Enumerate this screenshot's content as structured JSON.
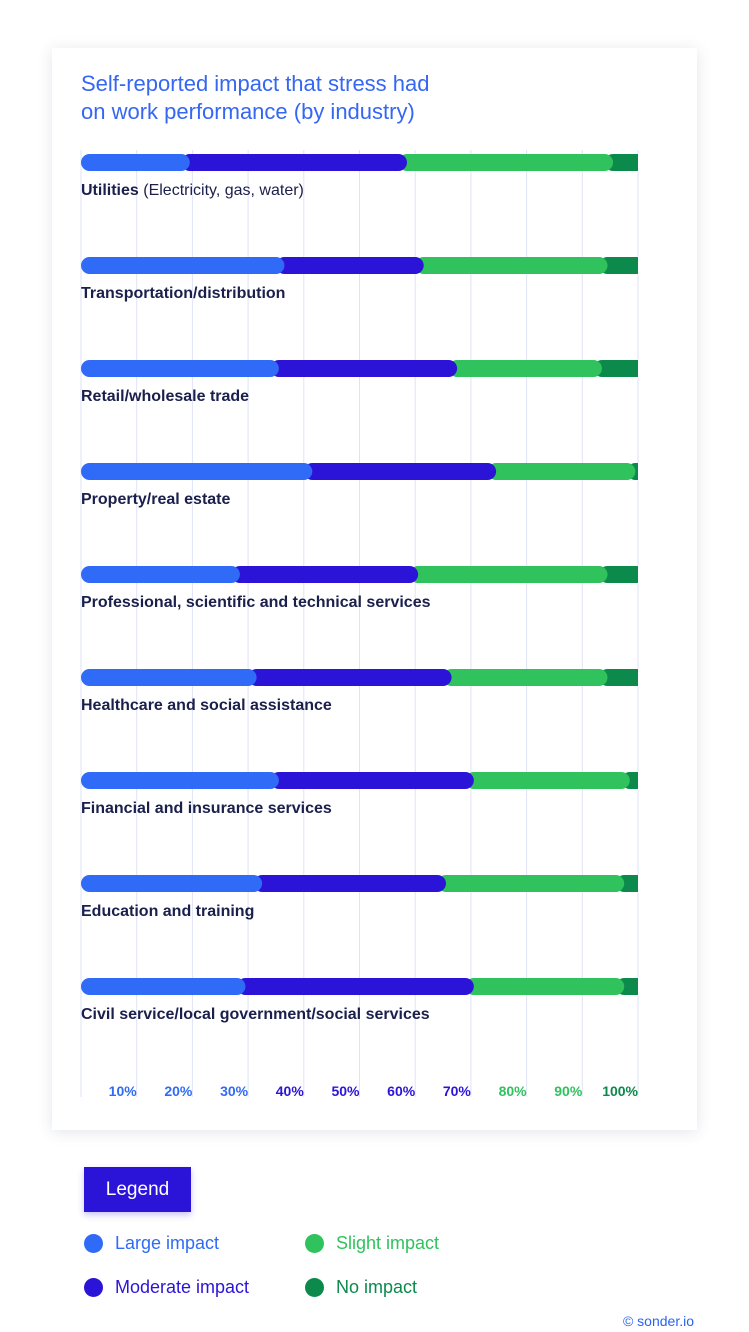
{
  "chart_data": {
    "type": "bar",
    "stacked": true,
    "orientation": "horizontal",
    "title": "Self-reported impact that stress had on work performance (by industry)",
    "title_lines": [
      "Self-reported impact that stress had",
      "on work performance (by industry)"
    ],
    "categories": [
      {
        "bold": "Utilities",
        "rest": " (Electricity, gas, water)"
      },
      {
        "bold": "Transportation/distribution",
        "rest": ""
      },
      {
        "bold": "Retail/wholesale trade",
        "rest": ""
      },
      {
        "bold": "Property/real estate",
        "rest": ""
      },
      {
        "bold": "Professional, scientific and technical services",
        "rest": ""
      },
      {
        "bold": "Healthcare and social assistance",
        "rest": ""
      },
      {
        "bold": "Financial and insurance services",
        "rest": ""
      },
      {
        "bold": "Education and training",
        "rest": ""
      },
      {
        "bold": "Civil service/local government/social services",
        "rest": ""
      }
    ],
    "series": [
      {
        "name": "Large impact",
        "color": "#2f6bf6",
        "values": [
          18,
          35,
          34,
          40,
          27,
          30,
          34,
          31,
          28
        ]
      },
      {
        "name": "Moderate impact",
        "color": "#2b14d8",
        "values": [
          39,
          25,
          32,
          33,
          32,
          35,
          35,
          33,
          41
        ]
      },
      {
        "name": "Slight impact",
        "color": "#2fc25d",
        "values": [
          37,
          33,
          26,
          25,
          34,
          28,
          28,
          32,
          27
        ]
      },
      {
        "name": "No impact",
        "color": "#0b8a4c",
        "values": [
          6,
          7,
          8,
          2,
          7,
          7,
          3,
          4,
          4
        ]
      }
    ],
    "xlim": [
      0,
      100
    ],
    "ticks": [
      {
        "label": "10%",
        "color": "#2f6bf6"
      },
      {
        "label": "20%",
        "color": "#2f6bf6"
      },
      {
        "label": "30%",
        "color": "#2f6bf6"
      },
      {
        "label": "40%",
        "color": "#2b14d8"
      },
      {
        "label": "50%",
        "color": "#2b14d8"
      },
      {
        "label": "60%",
        "color": "#2b14d8"
      },
      {
        "label": "70%",
        "color": "#2b14d8"
      },
      {
        "label": "80%",
        "color": "#2fc25d"
      },
      {
        "label": "90%",
        "color": "#2fc25d"
      },
      {
        "label": "100%",
        "color": "#0b8a4c"
      }
    ],
    "grid": true
  },
  "legend": {
    "heading": "Legend",
    "items": [
      {
        "label": "Large impact",
        "color": "#2f6bf6"
      },
      {
        "label": "Slight impact",
        "color": "#2fc25d"
      },
      {
        "label": "Moderate impact",
        "color": "#2b14d8"
      },
      {
        "label": "No impact",
        "color": "#0b8a4c"
      }
    ]
  },
  "credit": "© sonder.io",
  "colors": {
    "title": "#3567f2",
    "label_text": "#1a1f4b",
    "grid": "#dfe3f6"
  }
}
